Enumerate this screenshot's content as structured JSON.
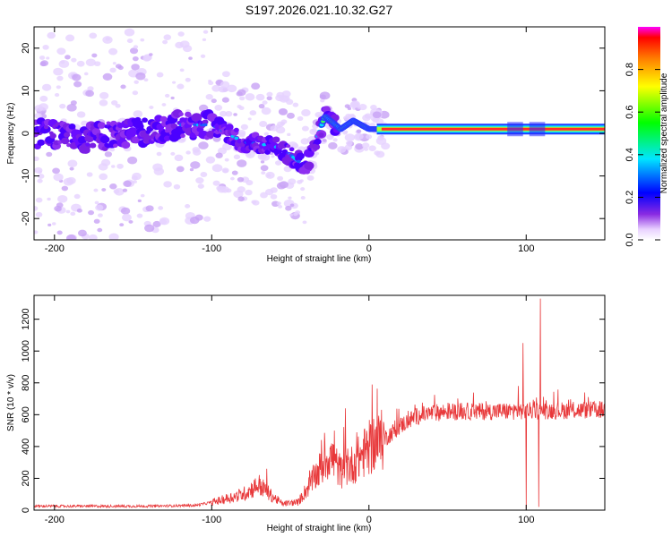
{
  "title": "S197.2026.021.10.32.G27",
  "chart_data": [
    {
      "type": "heatmap",
      "panel": "spectrogram",
      "xlabel": "Height of straight line (km)",
      "ylabel": "Frequency (Hz)",
      "xlim": [
        -213,
        150
      ],
      "ylim": [
        -25,
        25
      ],
      "xticks": [
        -200,
        -100,
        0,
        100
      ],
      "yticks": [
        -20,
        -10,
        0,
        10,
        20
      ],
      "ridge": [
        {
          "x": -213,
          "y": 0
        },
        {
          "x": -180,
          "y": -1
        },
        {
          "x": -150,
          "y": 0
        },
        {
          "x": -120,
          "y": 2
        },
        {
          "x": -100,
          "y": 2
        },
        {
          "x": -90,
          "y": 0
        },
        {
          "x": -80,
          "y": -2
        },
        {
          "x": -60,
          "y": -3
        },
        {
          "x": -50,
          "y": -5
        },
        {
          "x": -40,
          "y": -8
        },
        {
          "x": -35,
          "y": -3
        },
        {
          "x": -28,
          "y": 4
        },
        {
          "x": -18,
          "y": 1
        },
        {
          "x": -10,
          "y": 3
        },
        {
          "x": 0,
          "y": 1
        },
        {
          "x": 10,
          "y": 1
        },
        {
          "x": 150,
          "y": 1
        }
      ],
      "colorbar": {
        "label": "Normalized spectral amplitude",
        "range": [
          0,
          1
        ],
        "ticks": [
          "0.0",
          "0.2",
          "0.4",
          "0.6",
          "0.8"
        ]
      }
    },
    {
      "type": "line",
      "panel": "snr",
      "xlabel": "Height of straight line (km)",
      "ylabel": "SNR (10 * v/v)",
      "xlim": [
        -213,
        150
      ],
      "ylim": [
        0,
        1350
      ],
      "xticks": [
        -200,
        -100,
        0,
        100
      ],
      "yticks": [
        0,
        200,
        400,
        600,
        800,
        1000,
        1200
      ],
      "color": "#e8383a",
      "envelope": [
        {
          "x": -213,
          "y": 25
        },
        {
          "x": -140,
          "y": 25
        },
        {
          "x": -110,
          "y": 30
        },
        {
          "x": -95,
          "y": 60
        },
        {
          "x": -80,
          "y": 100
        },
        {
          "x": -70,
          "y": 160
        },
        {
          "x": -62,
          "y": 90
        },
        {
          "x": -55,
          "y": 40
        },
        {
          "x": -45,
          "y": 50
        },
        {
          "x": -35,
          "y": 200
        },
        {
          "x": -25,
          "y": 350
        },
        {
          "x": -18,
          "y": 240
        },
        {
          "x": -10,
          "y": 290
        },
        {
          "x": 0,
          "y": 390
        },
        {
          "x": 10,
          "y": 450
        },
        {
          "x": 20,
          "y": 530
        },
        {
          "x": 30,
          "y": 590
        },
        {
          "x": 40,
          "y": 610
        },
        {
          "x": 50,
          "y": 620
        },
        {
          "x": 70,
          "y": 620
        },
        {
          "x": 150,
          "y": 630
        }
      ],
      "spikes": [
        {
          "x": -65,
          "y": 260
        },
        {
          "x": -30,
          "y": 360
        },
        {
          "x": -22,
          "y": 500
        },
        {
          "x": -15,
          "y": 640
        },
        {
          "x": 2,
          "y": 790
        },
        {
          "x": 95,
          "y": 780
        },
        {
          "x": 98,
          "y": 1050
        },
        {
          "x": 100,
          "y": 10
        },
        {
          "x": 108,
          "y": 20
        },
        {
          "x": 109,
          "y": 1330
        }
      ]
    }
  ]
}
